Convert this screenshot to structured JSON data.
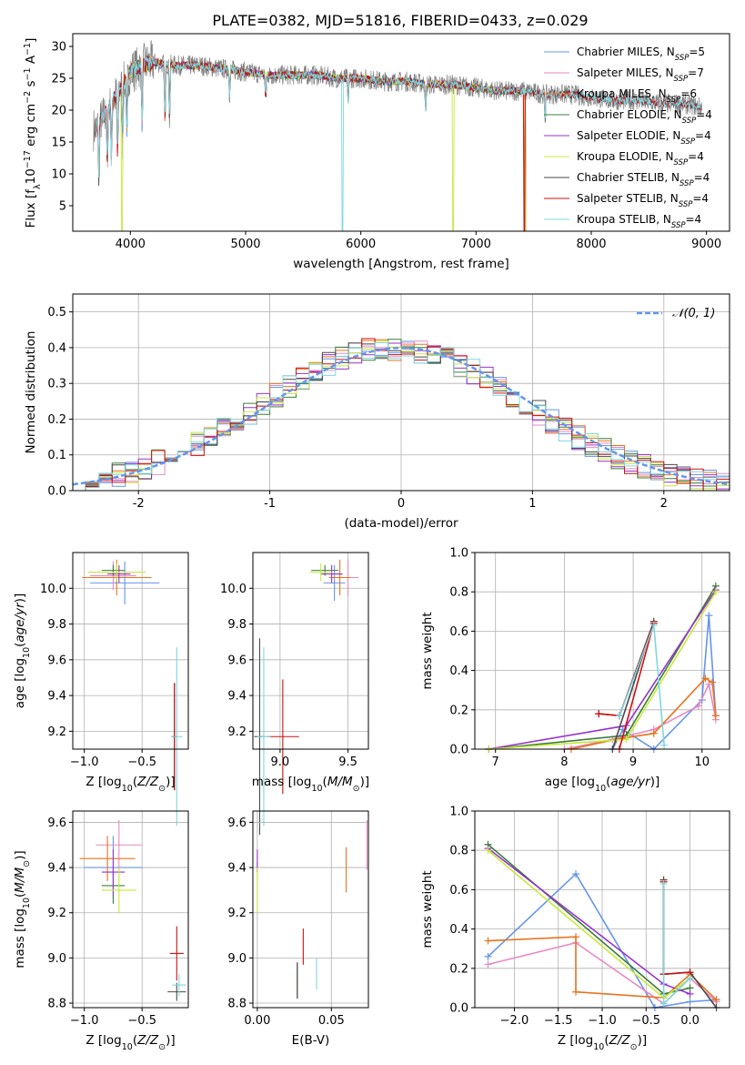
{
  "figure_title": "PLATE=0382, MJD=51816, FIBERID=0433, z=0.029",
  "colors": {
    "chabrier_miles": "#6495ed",
    "salpeter_miles": "#e78ac3",
    "kroupa_miles": "#e8731e",
    "chabrier_elodie": "#3a7d3a",
    "salpeter_elodie": "#9932cc",
    "kroupa_elodie": "#c7e83b",
    "chabrier_stelib": "#4a4a4a",
    "salpeter_stelib": "#cc1111",
    "kroupa_stelib": "#7fd7e0",
    "spectrum": "#808080"
  },
  "chart_data": [
    {
      "id": "spectrum",
      "type": "line",
      "title": "PLATE=0382, MJD=51816, FIBERID=0433, z=0.029",
      "xlabel": "wavelength [Angstrom, rest frame]",
      "ylabel": "Flux [f$_\\lambda$10$^{-17}$ erg cm$^{-2}$ s$^{-1}$ A$^{-1}$]",
      "ylabel_parts": [
        "Flux [f",
        "λ",
        "10",
        "−17",
        " erg cm",
        "−2",
        " s",
        "−1",
        " A",
        "−1",
        "]"
      ],
      "xlim": [
        3500,
        9200
      ],
      "ylim": [
        1,
        32
      ],
      "xticks": [
        4000,
        5000,
        6000,
        7000,
        8000,
        9000
      ],
      "yticks": [
        5,
        10,
        15,
        20,
        25,
        30
      ],
      "grid": false,
      "legend_position": "upper-right",
      "continuum": {
        "x": [
          3700,
          3800,
          3900,
          4000,
          4100,
          4200,
          4400,
          4600,
          4800,
          5000,
          5200,
          5400,
          5600,
          5800,
          6000,
          6200,
          6400,
          6600,
          6800,
          7000,
          7200,
          7400,
          7600,
          7800,
          8000,
          8200,
          8400,
          8600,
          8800,
          8950
        ],
        "y": [
          17,
          20,
          23,
          26,
          27,
          27.5,
          27,
          27,
          26.5,
          26,
          25.5,
          25.5,
          25.5,
          25,
          25,
          24.5,
          24.5,
          24,
          24,
          23.5,
          23,
          23,
          22.5,
          22.5,
          22,
          21.5,
          21.5,
          21,
          21,
          20.5
        ]
      },
      "series": [
        {
          "name": "Chabrier MILES",
          "nssp": "5",
          "key": "chabrier_miles"
        },
        {
          "name": "Salpeter MILES",
          "nssp": "7",
          "key": "salpeter_miles"
        },
        {
          "name": "Kroupa MILES",
          "nssp": "6",
          "key": "kroupa_miles"
        },
        {
          "name": "Chabrier ELODIE",
          "nssp": "4",
          "key": "chabrier_elodie"
        },
        {
          "name": "Salpeter ELODIE",
          "nssp": "4",
          "key": "salpeter_elodie"
        },
        {
          "name": "Kroupa ELODIE",
          "nssp": "4",
          "key": "kroupa_elodie"
        },
        {
          "name": "Chabrier STELIB",
          "nssp": "4",
          "key": "chabrier_stelib"
        },
        {
          "name": "Salpeter STELIB",
          "nssp": "4",
          "key": "salpeter_stelib"
        },
        {
          "name": "Kroupa STELIB",
          "nssp": "4",
          "key": "kroupa_stelib"
        }
      ]
    },
    {
      "id": "residuals",
      "type": "line",
      "xlabel": "(data-model)/error",
      "ylabel": "Normed distribution",
      "xlim": [
        -2.5,
        2.5
      ],
      "ylim": [
        0,
        0.55
      ],
      "xticks": [
        -2,
        -1,
        0,
        1,
        2
      ],
      "yticks": [
        0.0,
        0.1,
        0.2,
        0.3,
        0.4,
        0.5
      ],
      "grid": true,
      "legend": "$\\mathcal{N}(0,1)$",
      "legend_text": "𝒩(0, 1)",
      "legend_position": "upper-right",
      "gaussian": {
        "mean": 0,
        "sigma": 1,
        "style": "dashed",
        "color": "#6495ed"
      }
    },
    {
      "id": "age_vs_Z",
      "type": "scatter",
      "xlabel": "Z [log10(Z/Z⊙)]",
      "ylabel": "age  [log10(age/yr)]",
      "xlim": [
        -1.1,
        -0.1
      ],
      "ylim": [
        9.1,
        10.2
      ],
      "xticks": [
        -1.0,
        -0.5
      ],
      "yticks": [
        9.2,
        9.4,
        9.6,
        9.8,
        10.0
      ],
      "grid": true,
      "points": [
        {
          "key": "chabrier_miles",
          "x": -0.65,
          "y": 10.03,
          "xerr": 0.3,
          "yerr": 0.12
        },
        {
          "key": "salpeter_miles",
          "x": -0.75,
          "y": 10.07,
          "xerr": 0.2,
          "yerr": 0.08
        },
        {
          "key": "kroupa_miles",
          "x": -0.72,
          "y": 10.06,
          "xerr": 0.3,
          "yerr": 0.1
        },
        {
          "key": "chabrier_elodie",
          "x": -0.75,
          "y": 10.1,
          "xerr": 0.1,
          "yerr": 0.03
        },
        {
          "key": "salpeter_elodie",
          "x": -0.7,
          "y": 10.08,
          "xerr": 0.1,
          "yerr": 0.05
        },
        {
          "key": "kroupa_elodie",
          "x": -0.72,
          "y": 10.09,
          "xerr": 0.25,
          "yerr": 0.05
        },
        {
          "key": "chabrier_stelib",
          "x": -0.22,
          "y": 9.17,
          "xerr": 0.02,
          "yerr": 0.3
        },
        {
          "key": "salpeter_stelib",
          "x": -0.22,
          "y": 9.17,
          "xerr": 0.02,
          "yerr": 0.3
        },
        {
          "key": "kroupa_stelib",
          "x": -0.2,
          "y": 9.17,
          "xerr": 0.05,
          "yerr": 0.5
        }
      ]
    },
    {
      "id": "age_vs_mass",
      "type": "scatter",
      "xlabel": "mass [log10(M/M⊙)]",
      "ylabel": "",
      "xlim": [
        8.8,
        9.65
      ],
      "ylim": [
        9.1,
        10.2
      ],
      "xticks": [
        9.0,
        9.5
      ],
      "yticks": [
        9.2,
        9.4,
        9.6,
        9.8,
        10.0
      ],
      "grid": true,
      "points": [
        {
          "key": "chabrier_miles",
          "x": 9.4,
          "y": 10.03,
          "xerr": 0.08,
          "yerr": 0.1
        },
        {
          "key": "salpeter_miles",
          "x": 9.5,
          "y": 10.06,
          "xerr": 0.08,
          "yerr": 0.1
        },
        {
          "key": "kroupa_miles",
          "x": 9.44,
          "y": 10.06,
          "xerr": 0.08,
          "yerr": 0.1
        },
        {
          "key": "chabrier_elodie",
          "x": 9.33,
          "y": 10.1,
          "xerr": 0.1,
          "yerr": 0.03
        },
        {
          "key": "salpeter_elodie",
          "x": 9.38,
          "y": 10.08,
          "xerr": 0.08,
          "yerr": 0.05
        },
        {
          "key": "kroupa_elodie",
          "x": 9.3,
          "y": 10.09,
          "xerr": 0.08,
          "yerr": 0.05
        },
        {
          "key": "chabrier_stelib",
          "x": 8.85,
          "y": 9.17,
          "xerr": 0.04,
          "yerr": 0.55
        },
        {
          "key": "salpeter_stelib",
          "x": 9.02,
          "y": 9.17,
          "xerr": 0.12,
          "yerr": 0.32
        },
        {
          "key": "kroupa_stelib",
          "x": 8.88,
          "y": 9.17,
          "xerr": 0.05,
          "yerr": 0.5
        }
      ]
    },
    {
      "id": "weight_vs_age",
      "type": "line",
      "xlabel": "age  [log10(age/yr)]",
      "ylabel": "mass weight",
      "xlim": [
        6.7,
        10.4
      ],
      "ylim": [
        0,
        1
      ],
      "xticks": [
        7,
        8,
        9,
        10
      ],
      "yticks": [
        0.0,
        0.2,
        0.4,
        0.6,
        0.8,
        1.0
      ],
      "grid": true,
      "series": [
        {
          "key": "chabrier_miles",
          "x": [
            8.7,
            8.85,
            9.3,
            10.0,
            10.1,
            10.2
          ],
          "y": [
            0.0,
            0.1,
            0.0,
            0.25,
            0.68,
            0.17
          ]
        },
        {
          "key": "salpeter_miles",
          "x": [
            8.0,
            8.7,
            9.3,
            9.95,
            10.1,
            10.2
          ],
          "y": [
            0.0,
            0.05,
            0.1,
            0.22,
            0.33,
            0.15
          ]
        },
        {
          "key": "kroupa_miles",
          "x": [
            8.1,
            8.75,
            9.3,
            10.05,
            10.15,
            10.2
          ],
          "y": [
            0.0,
            0.05,
            0.08,
            0.36,
            0.34,
            0.17
          ]
        },
        {
          "key": "chabrier_elodie",
          "x": [
            6.9,
            8.9,
            10.2
          ],
          "y": [
            0.0,
            0.07,
            0.83
          ]
        },
        {
          "key": "salpeter_elodie",
          "x": [
            6.9,
            8.9,
            10.2
          ],
          "y": [
            0.0,
            0.12,
            0.81
          ]
        },
        {
          "key": "kroupa_elodie",
          "x": [
            6.9,
            8.9,
            10.2
          ],
          "y": [
            0.0,
            0.05,
            0.8
          ]
        },
        {
          "key": "chabrier_stelib",
          "x": [
            8.5,
            8.8,
            9.3,
            8.7
          ],
          "y": [
            0.18,
            0.17,
            0.65,
            0.0
          ]
        },
        {
          "key": "salpeter_stelib",
          "x": [
            8.5,
            8.8,
            9.3,
            8.8
          ],
          "y": [
            0.18,
            0.17,
            0.64,
            0.0
          ]
        },
        {
          "key": "kroupa_stelib",
          "x": [
            8.8,
            9.3,
            9.45
          ],
          "y": [
            0.17,
            0.63,
            0.02
          ]
        }
      ]
    },
    {
      "id": "mass_vs_Z",
      "type": "scatter",
      "xlabel": "Z [log10(Z/Z⊙)]",
      "ylabel": "mass [log10(M/M⊙)]",
      "xlim": [
        -1.1,
        -0.1
      ],
      "ylim": [
        8.78,
        9.65
      ],
      "xticks": [
        -1.0,
        -0.5
      ],
      "yticks": [
        8.8,
        9.0,
        9.2,
        9.4,
        9.6
      ],
      "grid": true,
      "points": [
        {
          "key": "chabrier_miles",
          "x": -0.75,
          "y": 9.4,
          "xerr": 0.25,
          "yerr": 0.14
        },
        {
          "key": "salpeter_miles",
          "x": -0.7,
          "y": 9.5,
          "xerr": 0.2,
          "yerr": 0.11
        },
        {
          "key": "kroupa_miles",
          "x": -0.8,
          "y": 9.44,
          "xerr": 0.24,
          "yerr": 0.1
        },
        {
          "key": "chabrier_elodie",
          "x": -0.75,
          "y": 9.32,
          "xerr": 0.1,
          "yerr": 0.08
        },
        {
          "key": "salpeter_elodie",
          "x": -0.75,
          "y": 9.38,
          "xerr": 0.1,
          "yerr": 0.1
        },
        {
          "key": "kroupa_elodie",
          "x": -0.7,
          "y": 9.3,
          "xerr": 0.15,
          "yerr": 0.1
        },
        {
          "key": "chabrier_stelib",
          "x": -0.2,
          "y": 8.85,
          "xerr": 0.08,
          "yerr": 0.04
        },
        {
          "key": "salpeter_stelib",
          "x": -0.2,
          "y": 9.02,
          "xerr": 0.06,
          "yerr": 0.12
        },
        {
          "key": "kroupa_stelib",
          "x": -0.18,
          "y": 8.88,
          "xerr": 0.06,
          "yerr": 0.05
        }
      ]
    },
    {
      "id": "mass_vs_EBV",
      "type": "scatter",
      "xlabel": "E(B-V)",
      "ylabel": "",
      "xlim": [
        -0.003,
        0.075
      ],
      "ylim": [
        8.78,
        9.65
      ],
      "xticks": [
        0.0,
        0.05
      ],
      "yticks": [
        8.8,
        9.0,
        9.2,
        9.4,
        9.6
      ],
      "grid": true,
      "points": [
        {
          "key": "chabrier_miles",
          "x": 0.0,
          "y": 9.4,
          "yerr": 0.02
        },
        {
          "key": "salpeter_miles",
          "x": 0.074,
          "y": 9.5,
          "yerr": 0.11
        },
        {
          "key": "kroupa_miles",
          "x": 0.06,
          "y": 9.39,
          "yerr": 0.1
        },
        {
          "key": "chabrier_elodie",
          "x": 0.027,
          "y": 8.9,
          "yerr": 0.08
        },
        {
          "key": "salpeter_elodie",
          "x": 0.0,
          "y": 9.43,
          "yerr": 0.05
        },
        {
          "key": "kroupa_elodie",
          "x": 0.0,
          "y": 9.3,
          "yerr": 0.1
        },
        {
          "key": "chabrier_stelib",
          "x": 0.027,
          "y": 8.9,
          "yerr": 0.08
        },
        {
          "key": "salpeter_stelib",
          "x": 0.031,
          "y": 9.05,
          "yerr": 0.08
        },
        {
          "key": "kroupa_stelib",
          "x": 0.04,
          "y": 8.93,
          "yerr": 0.07
        }
      ]
    },
    {
      "id": "weight_vs_Z",
      "type": "line",
      "xlabel": "Z [log10(Z/Z⊙)]",
      "ylabel": "mass weight",
      "xlim": [
        -2.45,
        0.45
      ],
      "ylim": [
        0,
        1
      ],
      "xticks": [
        -2.0,
        -1.5,
        -1.0,
        -0.5,
        0.0
      ],
      "yticks": [
        0.0,
        0.2,
        0.4,
        0.6,
        0.8,
        1.0
      ],
      "grid": true,
      "series": [
        {
          "key": "chabrier_miles",
          "x": [
            -2.3,
            -1.3,
            -0.4,
            0.0,
            0.3
          ],
          "y": [
            0.26,
            0.68,
            0.0,
            0.03,
            0.04
          ]
        },
        {
          "key": "salpeter_miles",
          "x": [
            -2.3,
            -1.3,
            -0.3,
            0.0,
            0.3
          ],
          "y": [
            0.22,
            0.33,
            0.02,
            0.15,
            0.03
          ]
        },
        {
          "key": "kroupa_miles",
          "x": [
            -2.3,
            -1.3,
            -1.3,
            -0.3,
            0.0,
            0.3
          ],
          "y": [
            0.34,
            0.36,
            0.08,
            0.05,
            0.17,
            0.04
          ]
        },
        {
          "key": "chabrier_elodie",
          "x": [
            -2.3,
            -0.3,
            0.0
          ],
          "y": [
            0.83,
            0.07,
            0.1
          ]
        },
        {
          "key": "salpeter_elodie",
          "x": [
            -2.3,
            -0.3,
            0.0
          ],
          "y": [
            0.81,
            0.12,
            0.07
          ]
        },
        {
          "key": "kroupa_elodie",
          "x": [
            -2.3,
            -0.3,
            0.0
          ],
          "y": [
            0.8,
            0.05,
            0.15
          ]
        },
        {
          "key": "chabrier_stelib",
          "x": [
            -0.3,
            -0.3,
            0.0,
            0.3
          ],
          "y": [
            0.65,
            0.17,
            0.18,
            0.0
          ]
        },
        {
          "key": "salpeter_stelib",
          "x": [
            -0.3,
            -0.3,
            0.0
          ],
          "y": [
            0.64,
            0.17,
            0.18
          ]
        },
        {
          "key": "kroupa_stelib",
          "x": [
            -0.3,
            -0.3,
            0.0
          ],
          "y": [
            0.63,
            0.02,
            0.15
          ]
        }
      ]
    }
  ]
}
